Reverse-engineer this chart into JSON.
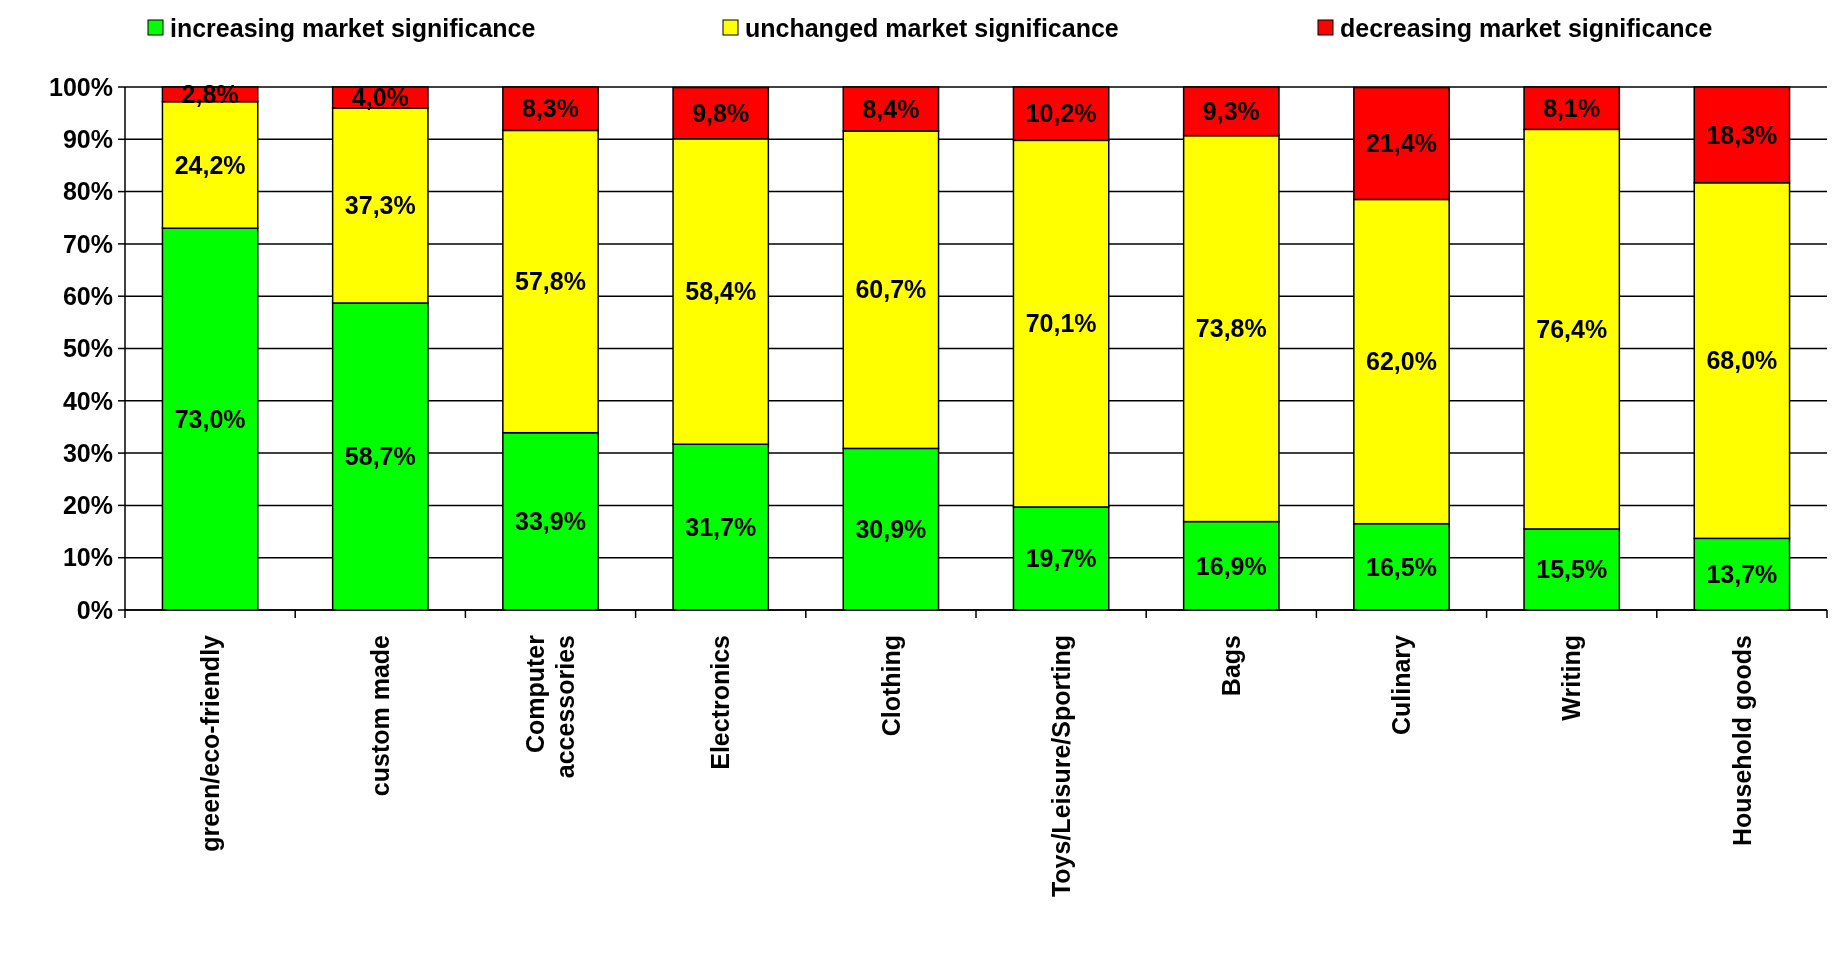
{
  "chart_data": {
    "type": "bar",
    "stacked": true,
    "categories": [
      "green/eco-friendly",
      "custom made",
      "Computer\naccessories",
      "Electronics",
      "Clothing",
      "Toys/Leisure/Sporting",
      "Bags",
      "Culinary",
      "Writing",
      "Household goods"
    ],
    "series": [
      {
        "name": "increasing market significance",
        "color": "#00ff00",
        "values": [
          73.0,
          58.7,
          33.9,
          31.7,
          30.9,
          19.7,
          16.9,
          16.5,
          15.5,
          13.7
        ],
        "value_labels": [
          "73,0%",
          "58,7%",
          "33,9%",
          "31,7%",
          "30,9%",
          "19,7%",
          "16,9%",
          "16,5%",
          "15,5%",
          "13,7%"
        ]
      },
      {
        "name": "unchanged market significance",
        "color": "#ffff00",
        "values": [
          24.2,
          37.3,
          57.8,
          58.4,
          60.7,
          70.1,
          73.8,
          62.0,
          76.4,
          68.0
        ],
        "value_labels": [
          "24,2%",
          "37,3%",
          "57,8%",
          "58,4%",
          "60,7%",
          "70,1%",
          "73,8%",
          "62,0%",
          "76,4%",
          "68,0%"
        ]
      },
      {
        "name": "decreasing market significance",
        "color": "#ff0000",
        "values": [
          2.8,
          4.0,
          8.3,
          9.8,
          8.4,
          10.2,
          9.3,
          21.4,
          8.1,
          18.3
        ],
        "value_labels": [
          "2,8%",
          "4,0%",
          "8,3%",
          "9,8%",
          "8,4%",
          "10,2%",
          "9,3%",
          "21,4%",
          "8,1%",
          "18,3%"
        ]
      }
    ],
    "ylim": [
      0,
      100
    ],
    "yticks": [
      {
        "value": 0,
        "label": "0%"
      },
      {
        "value": 10,
        "label": "10%"
      },
      {
        "value": 20,
        "label": "20%"
      },
      {
        "value": 30,
        "label": "30%"
      },
      {
        "value": 40,
        "label": "40%"
      },
      {
        "value": 50,
        "label": "50%"
      },
      {
        "value": 60,
        "label": "60%"
      },
      {
        "value": 70,
        "label": "70%"
      },
      {
        "value": 80,
        "label": "80%"
      },
      {
        "value": 90,
        "label": "90%"
      },
      {
        "value": 100,
        "label": "100%"
      }
    ],
    "grid": "y",
    "legend": "top"
  }
}
